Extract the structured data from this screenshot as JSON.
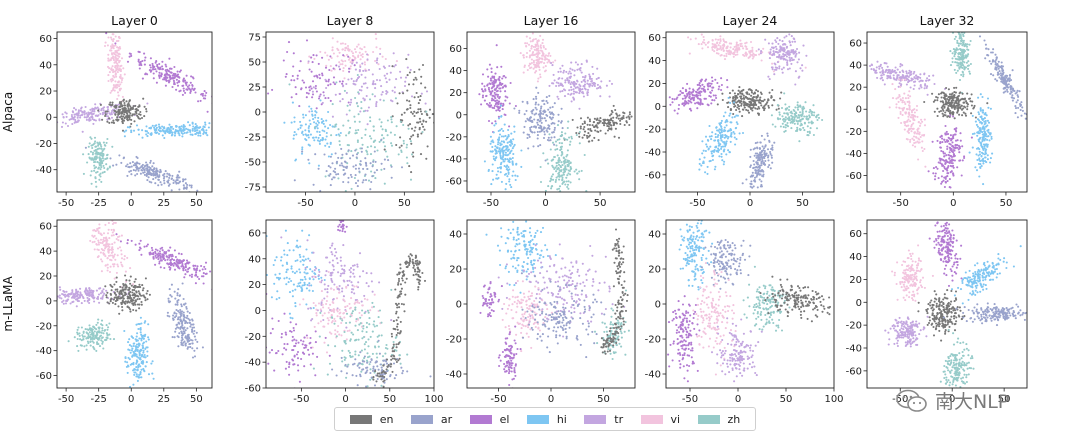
{
  "chart_data": {
    "type": "scatter",
    "rows": [
      "Alpaca",
      "m-LLaMA"
    ],
    "columns": [
      "Layer 0",
      "Layer 8",
      "Layer 16",
      "Layer 24",
      "Layer 32"
    ],
    "legend": {
      "placement": "bottom-center",
      "entries": [
        {
          "key": "en",
          "label": "en",
          "color": "#777777"
        },
        {
          "key": "ar",
          "label": "ar",
          "color": "#99a3cc"
        },
        {
          "key": "el",
          "label": "el",
          "color": "#b27ad2"
        },
        {
          "key": "hi",
          "label": "hi",
          "color": "#7ec6f2"
        },
        {
          "key": "tr",
          "label": "tr",
          "color": "#c3a6e0"
        },
        {
          "key": "vi",
          "label": "vi",
          "color": "#f2c4de"
        },
        {
          "key": "zh",
          "label": "zh",
          "color": "#96cbc9"
        }
      ]
    },
    "panels": [
      {
        "row": 0,
        "col": 0,
        "xlim": [
          -57,
          62
        ],
        "ylim": [
          -57,
          65
        ],
        "xticks": [
          -50,
          -25,
          0,
          25,
          50
        ],
        "yticks": [
          -40,
          -20,
          0,
          20,
          40,
          60
        ],
        "clusters": [
          {
            "lang": "vi",
            "x": -12,
            "y": 40,
            "sx": 3,
            "sy": 14,
            "rot": 5,
            "n": 170
          },
          {
            "lang": "el",
            "x": 30,
            "y": 31,
            "sx": 17,
            "sy": 3.5,
            "rot": -30,
            "n": 200
          },
          {
            "lang": "tr",
            "x": -31,
            "y": 2,
            "sx": 14,
            "sy": 3,
            "rot": 8,
            "n": 170
          },
          {
            "lang": "en",
            "x": -5,
            "y": 4,
            "sx": 7,
            "sy": 5,
            "rot": 0,
            "n": 180
          },
          {
            "lang": "hi",
            "x": 33,
            "y": -10,
            "sx": 17,
            "sy": 2.5,
            "rot": 2,
            "n": 200
          },
          {
            "lang": "zh",
            "x": -25,
            "y": -31,
            "sx": 4,
            "sy": 7,
            "rot": 0,
            "n": 150
          },
          {
            "lang": "ar",
            "x": 18,
            "y": -43,
            "sx": 15,
            "sy": 3,
            "rot": -20,
            "n": 200
          }
        ]
      },
      {
        "row": 0,
        "col": 1,
        "xlim": [
          -90,
          80
        ],
        "ylim": [
          -80,
          80
        ],
        "xticks": [
          -50,
          0,
          50
        ],
        "yticks": [
          -75,
          -50,
          -25,
          0,
          25,
          50,
          75
        ],
        "clusters": [
          {
            "lang": "vi",
            "x": -5,
            "y": 55,
            "sx": 16,
            "sy": 10,
            "rot": 0,
            "n": 100
          },
          {
            "lang": "el",
            "x": -40,
            "y": 35,
            "sx": 18,
            "sy": 14,
            "rot": 0,
            "n": 90
          },
          {
            "lang": "tr",
            "x": 10,
            "y": 25,
            "sx": 22,
            "sy": 16,
            "rot": 0,
            "n": 120
          },
          {
            "lang": "en",
            "x": 60,
            "y": 0,
            "sx": 9,
            "sy": 25,
            "rot": 0,
            "n": 90
          },
          {
            "lang": "hi",
            "x": -40,
            "y": -18,
            "sx": 12,
            "sy": 14,
            "rot": 0,
            "n": 110
          },
          {
            "lang": "zh",
            "x": 15,
            "y": -25,
            "sx": 24,
            "sy": 25,
            "rot": 0,
            "n": 140
          },
          {
            "lang": "ar",
            "x": -5,
            "y": -55,
            "sx": 20,
            "sy": 10,
            "rot": 0,
            "n": 100
          }
        ]
      },
      {
        "row": 0,
        "col": 2,
        "xlim": [
          -72,
          82
        ],
        "ylim": [
          -70,
          75
        ],
        "xticks": [
          -50,
          0,
          50
        ],
        "yticks": [
          -60,
          -40,
          -20,
          0,
          20,
          40,
          60
        ],
        "clusters": [
          {
            "lang": "vi",
            "x": -8,
            "y": 53,
            "sx": 6,
            "sy": 9,
            "rot": 0,
            "n": 150
          },
          {
            "lang": "el",
            "x": -47,
            "y": 20,
            "sx": 6,
            "sy": 12,
            "rot": 0,
            "n": 160
          },
          {
            "lang": "tr",
            "x": 30,
            "y": 30,
            "sx": 12,
            "sy": 8,
            "rot": 0,
            "n": 170
          },
          {
            "lang": "ar",
            "x": -5,
            "y": -5,
            "sx": 8,
            "sy": 12,
            "rot": 0,
            "n": 160
          },
          {
            "lang": "en",
            "x": 55,
            "y": -8,
            "sx": 14,
            "sy": 5,
            "rot": 15,
            "n": 140
          },
          {
            "lang": "hi",
            "x": -38,
            "y": -38,
            "sx": 7,
            "sy": 14,
            "rot": 0,
            "n": 180
          },
          {
            "lang": "zh",
            "x": 15,
            "y": -45,
            "sx": 7,
            "sy": 14,
            "rot": 0,
            "n": 180
          }
        ]
      },
      {
        "row": 0,
        "col": 3,
        "xlim": [
          -80,
          80
        ],
        "ylim": [
          -75,
          65
        ],
        "xticks": [
          -50,
          0,
          50
        ],
        "yticks": [
          -60,
          -40,
          -20,
          0,
          20,
          40,
          60
        ],
        "clusters": [
          {
            "lang": "vi",
            "x": -18,
            "y": 50,
            "sx": 17,
            "sy": 4,
            "rot": -10,
            "n": 170
          },
          {
            "lang": "tr",
            "x": 32,
            "y": 45,
            "sx": 8,
            "sy": 10,
            "rot": 30,
            "n": 160
          },
          {
            "lang": "el",
            "x": -50,
            "y": 10,
            "sx": 12,
            "sy": 5,
            "rot": 20,
            "n": 160
          },
          {
            "lang": "en",
            "x": 0,
            "y": 5,
            "sx": 12,
            "sy": 5,
            "rot": 0,
            "n": 200
          },
          {
            "lang": "zh",
            "x": 45,
            "y": -10,
            "sx": 10,
            "sy": 7,
            "rot": 0,
            "n": 170
          },
          {
            "lang": "hi",
            "x": -30,
            "y": -30,
            "sx": 7,
            "sy": 13,
            "rot": -30,
            "n": 170
          },
          {
            "lang": "ar",
            "x": 10,
            "y": -50,
            "sx": 5,
            "sy": 12,
            "rot": -15,
            "n": 170
          }
        ]
      },
      {
        "row": 0,
        "col": 4,
        "xlim": [
          -82,
          70
        ],
        "ylim": [
          -75,
          70
        ],
        "xticks": [
          -50,
          0,
          50
        ],
        "yticks": [
          -60,
          -40,
          -20,
          0,
          20,
          40,
          60
        ],
        "clusters": [
          {
            "lang": "zh",
            "x": 8,
            "y": 52,
            "sx": 4,
            "sy": 11,
            "rot": 0,
            "n": 170
          },
          {
            "lang": "tr",
            "x": -50,
            "y": 30,
            "sx": 16,
            "sy": 4,
            "rot": -15,
            "n": 180
          },
          {
            "lang": "ar",
            "x": 50,
            "y": 25,
            "sx": 3,
            "sy": 17,
            "rot": 30,
            "n": 170
          },
          {
            "lang": "en",
            "x": 0,
            "y": 5,
            "sx": 9,
            "sy": 6,
            "rot": 0,
            "n": 200
          },
          {
            "lang": "vi",
            "x": -40,
            "y": -10,
            "sx": 5,
            "sy": 15,
            "rot": 20,
            "n": 150
          },
          {
            "lang": "hi",
            "x": 28,
            "y": -25,
            "sx": 4,
            "sy": 15,
            "rot": 0,
            "n": 170
          },
          {
            "lang": "el",
            "x": -5,
            "y": -40,
            "sx": 6,
            "sy": 15,
            "rot": -10,
            "n": 180
          }
        ]
      },
      {
        "row": 1,
        "col": 0,
        "xlim": [
          -57,
          62
        ],
        "ylim": [
          -70,
          65
        ],
        "xticks": [
          -50,
          -25,
          0,
          25,
          50
        ],
        "yticks": [
          -60,
          -40,
          -20,
          0,
          20,
          40,
          60
        ],
        "clusters": [
          {
            "lang": "vi",
            "x": -18,
            "y": 45,
            "sx": 5,
            "sy": 13,
            "rot": 20,
            "n": 170
          },
          {
            "lang": "el",
            "x": 32,
            "y": 32,
            "sx": 16,
            "sy": 3.5,
            "rot": -25,
            "n": 200
          },
          {
            "lang": "tr",
            "x": -40,
            "y": 4,
            "sx": 14,
            "sy": 3,
            "rot": 3,
            "n": 170
          },
          {
            "lang": "en",
            "x": -3,
            "y": 5,
            "sx": 7,
            "sy": 6,
            "rot": 0,
            "n": 180
          },
          {
            "lang": "ar",
            "x": 40,
            "y": -18,
            "sx": 4,
            "sy": 13,
            "rot": 15,
            "n": 180
          },
          {
            "lang": "zh",
            "x": -28,
            "y": -28,
            "sx": 7,
            "sy": 5,
            "rot": 15,
            "n": 150
          },
          {
            "lang": "hi",
            "x": 5,
            "y": -45,
            "sx": 4,
            "sy": 13,
            "rot": 0,
            "n": 180
          }
        ]
      },
      {
        "row": 1,
        "col": 1,
        "xlim": [
          -90,
          100
        ],
        "ylim": [
          -60,
          70
        ],
        "xticks": [
          -50,
          0,
          50,
          100
        ],
        "yticks": [
          -60,
          -40,
          -20,
          0,
          20,
          40,
          60
        ],
        "clusters": [
          {
            "lang": "el",
            "x": -5,
            "y": 65,
            "sx": 3,
            "sy": 3,
            "rot": 0,
            "n": 20
          },
          {
            "lang": "hi",
            "x": -55,
            "y": 30,
            "sx": 14,
            "sy": 15,
            "rot": 0,
            "n": 120
          },
          {
            "lang": "tr",
            "x": -5,
            "y": 25,
            "sx": 20,
            "sy": 15,
            "rot": 0,
            "n": 130
          },
          {
            "lang": "vi",
            "x": -10,
            "y": 0,
            "sx": 18,
            "sy": 12,
            "rot": 0,
            "n": 120
          },
          {
            "lang": "zh",
            "x": 20,
            "y": -25,
            "sx": 20,
            "sy": 15,
            "rot": 0,
            "n": 140
          },
          {
            "lang": "el",
            "x": -60,
            "y": -30,
            "sx": 15,
            "sy": 12,
            "rot": 0,
            "n": 90
          },
          {
            "lang": "ar",
            "x": 30,
            "y": -45,
            "sx": 20,
            "sy": 6,
            "rot": 0,
            "n": 90
          }
        ],
        "curve": {
          "lang": "en",
          "n": 170,
          "spread": 3,
          "points": [
            [
              35,
              -55
            ],
            [
              50,
              -45
            ],
            [
              58,
              -25
            ],
            [
              60,
              0
            ],
            [
              62,
              25
            ],
            [
              70,
              38
            ],
            [
              80,
              37
            ],
            [
              85,
              20
            ]
          ]
        }
      },
      {
        "row": 1,
        "col": 2,
        "xlim": [
          -80,
          80
        ],
        "ylim": [
          -48,
          48
        ],
        "xticks": [
          -50,
          0,
          50
        ],
        "yticks": [
          -40,
          -20,
          0,
          20,
          40
        ],
        "clusters": [
          {
            "lang": "hi",
            "x": -25,
            "y": 30,
            "sx": 12,
            "sy": 8,
            "rot": 0,
            "n": 140
          },
          {
            "lang": "tr",
            "x": 10,
            "y": 10,
            "sx": 22,
            "sy": 10,
            "rot": 0,
            "n": 180
          },
          {
            "lang": "el",
            "x": -60,
            "y": 3,
            "sx": 4,
            "sy": 6,
            "rot": 0,
            "n": 50
          },
          {
            "lang": "vi",
            "x": -25,
            "y": -5,
            "sx": 10,
            "sy": 8,
            "rot": 0,
            "n": 120
          },
          {
            "lang": "ar",
            "x": 10,
            "y": -8,
            "sx": 16,
            "sy": 8,
            "rot": 0,
            "n": 150
          },
          {
            "lang": "el",
            "x": -40,
            "y": -32,
            "sx": 4,
            "sy": 7,
            "rot": 0,
            "n": 90
          },
          {
            "lang": "zh",
            "x": 60,
            "y": -18,
            "sx": 6,
            "sy": 6,
            "rot": 0,
            "n": 90
          }
        ],
        "curve": {
          "lang": "en",
          "n": 150,
          "spread": 2.5,
          "points": [
            [
              50,
              -25
            ],
            [
              62,
              -18
            ],
            [
              68,
              0
            ],
            [
              66,
              20
            ],
            [
              60,
              40
            ]
          ]
        }
      },
      {
        "row": 1,
        "col": 3,
        "xlim": [
          -75,
          100
        ],
        "ylim": [
          -48,
          48
        ],
        "xticks": [
          -50,
          0,
          50,
          100
        ],
        "yticks": [
          -40,
          -20,
          0,
          20,
          40
        ],
        "clusters": [
          {
            "lang": "hi",
            "x": -45,
            "y": 30,
            "sx": 7,
            "sy": 9,
            "rot": 0,
            "n": 150
          },
          {
            "lang": "ar",
            "x": -12,
            "y": 25,
            "sx": 10,
            "sy": 6,
            "rot": 0,
            "n": 130
          },
          {
            "lang": "vi",
            "x": -25,
            "y": -5,
            "sx": 10,
            "sy": 12,
            "rot": 0,
            "n": 140
          },
          {
            "lang": "zh",
            "x": 30,
            "y": 0,
            "sx": 10,
            "sy": 7,
            "rot": 0,
            "n": 140
          },
          {
            "lang": "en",
            "x": 60,
            "y": 2,
            "sx": 17,
            "sy": 4,
            "rot": -5,
            "n": 170
          },
          {
            "lang": "el",
            "x": -55,
            "y": -18,
            "sx": 7,
            "sy": 10,
            "rot": 0,
            "n": 140
          },
          {
            "lang": "tr",
            "x": 0,
            "y": -28,
            "sx": 10,
            "sy": 7,
            "rot": 0,
            "n": 140
          }
        ]
      },
      {
        "row": 1,
        "col": 4,
        "xlim": [
          -82,
          72
        ],
        "ylim": [
          -75,
          72
        ],
        "xticks": [
          -50,
          0,
          50
        ],
        "yticks": [
          -60,
          -40,
          -20,
          0,
          20,
          40,
          60
        ],
        "clusters": [
          {
            "lang": "el",
            "x": -5,
            "y": 48,
            "sx": 5,
            "sy": 12,
            "rot": 10,
            "n": 170
          },
          {
            "lang": "vi",
            "x": -40,
            "y": 20,
            "sx": 6,
            "sy": 9,
            "rot": 0,
            "n": 150
          },
          {
            "lang": "hi",
            "x": 28,
            "y": 22,
            "sx": 13,
            "sy": 5,
            "rot": 35,
            "n": 170
          },
          {
            "lang": "en",
            "x": -8,
            "y": -10,
            "sx": 8,
            "sy": 8,
            "rot": 0,
            "n": 200
          },
          {
            "lang": "ar",
            "x": 42,
            "y": -10,
            "sx": 16,
            "sy": 3.5,
            "rot": 0,
            "n": 170
          },
          {
            "lang": "tr",
            "x": -45,
            "y": -25,
            "sx": 7,
            "sy": 7,
            "rot": 10,
            "n": 150
          },
          {
            "lang": "zh",
            "x": 5,
            "y": -58,
            "sx": 6,
            "sy": 10,
            "rot": -10,
            "n": 160
          }
        ]
      }
    ]
  },
  "watermark": {
    "text": "南大NLP",
    "icon": "wechat-icon"
  }
}
